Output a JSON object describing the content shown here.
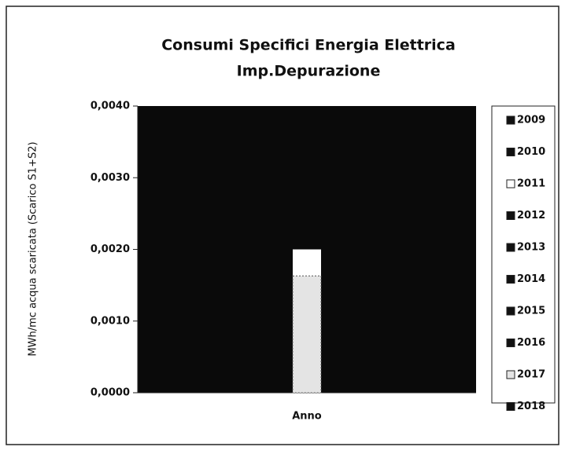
{
  "chart_data": {
    "type": "bar",
    "title": [
      "Consumi Specifici Energia Elettrica",
      "Imp.Depurazione"
    ],
    "xlabel": "Anno",
    "ylabel": "MWh/mc acqua scaricata (Scarico S1+S2)",
    "categories": [
      null
    ],
    "series": [
      {
        "name": "2009",
        "color": "#111111",
        "values": [
          null
        ]
      },
      {
        "name": "2010",
        "color": "#111111",
        "values": [
          null
        ]
      },
      {
        "name": "2011",
        "color": "#ffffff",
        "values": [
          0.002
        ]
      },
      {
        "name": "2012",
        "color": "#111111",
        "values": [
          null
        ]
      },
      {
        "name": "2013",
        "color": "#111111",
        "values": [
          null
        ]
      },
      {
        "name": "2014",
        "color": "#111111",
        "values": [
          null
        ]
      },
      {
        "name": "2015",
        "color": "#111111",
        "values": [
          null
        ]
      },
      {
        "name": "2016",
        "color": "#111111",
        "values": [
          null
        ]
      },
      {
        "name": "2017",
        "color": "#e4e4e4",
        "values": [
          0.00163
        ]
      },
      {
        "name": "2018",
        "color": "#111111",
        "values": [
          null
        ]
      }
    ],
    "ylim": [
      0,
      0.004
    ],
    "yticks": [
      {
        "value": 0,
        "label": "0,0000"
      },
      {
        "value": 0.001,
        "label": "0,0010"
      },
      {
        "value": 0.002,
        "label": "0,0020"
      },
      {
        "value": 0.003,
        "label": "0,0030"
      },
      {
        "value": 0.004,
        "label": "0,0040"
      }
    ],
    "plot_background": "#0a0a0a",
    "legend": "right"
  }
}
